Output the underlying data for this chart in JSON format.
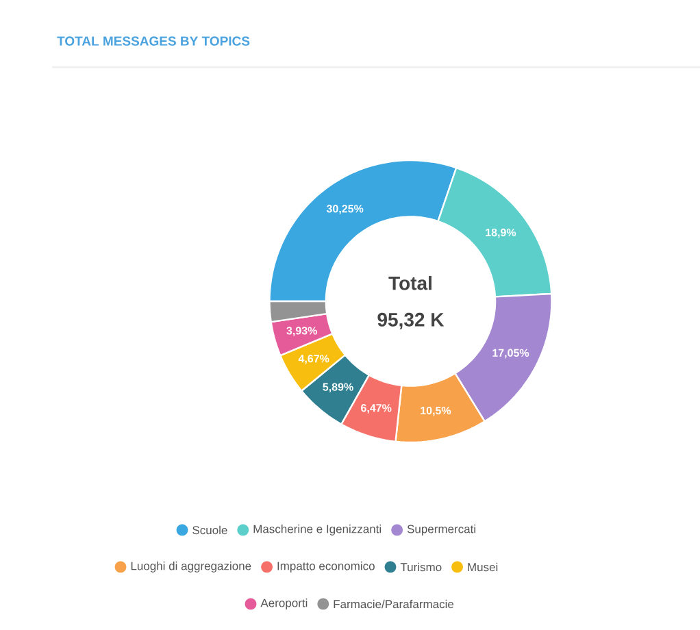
{
  "chart_data": {
    "type": "donut",
    "title": "TOTAL MESSAGES BY TOPICS",
    "categories": [
      "Scuole",
      "Mascherine e Igenizzanti",
      "Supermercati",
      "Luoghi di aggregazione",
      "Impatto economico",
      "Turismo",
      "Musei",
      "Aeroporti",
      "Farmacie/Parafarmacie"
    ],
    "values": [
      30.25,
      18.9,
      17.05,
      10.5,
      6.47,
      5.89,
      4.67,
      3.93,
      2.34
    ],
    "colors": [
      "#3ba7e0",
      "#5ccfcb",
      "#a487d1",
      "#f7a14a",
      "#f57068",
      "#2f7f91",
      "#f7bd0f",
      "#e55b9a",
      "#939393"
    ],
    "value_labels": [
      "30,25%",
      "18,9%",
      "17,05%",
      "10,5%",
      "6,47%",
      "5,89%",
      "4,67%",
      "3,93%",
      null
    ],
    "annotations": [
      "Total",
      "95,32 K"
    ],
    "legend": "bottom"
  }
}
